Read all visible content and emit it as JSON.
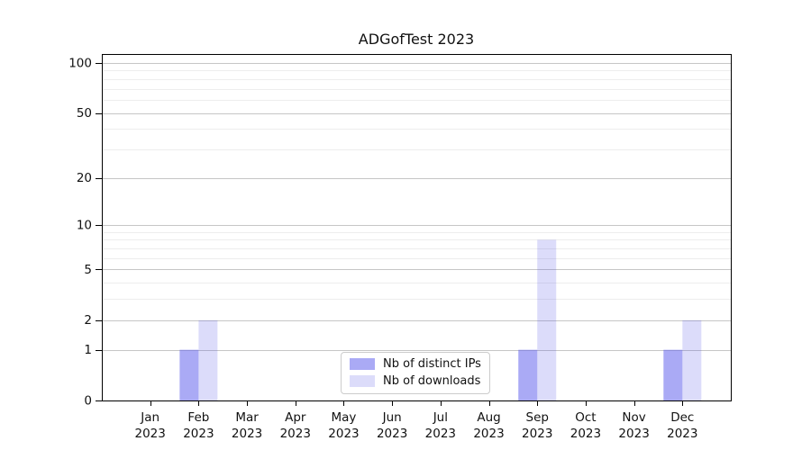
{
  "chart_data": {
    "type": "bar",
    "title": "ADGofTest 2023",
    "year_label": "2023",
    "categories": [
      "Jan",
      "Feb",
      "Mar",
      "Apr",
      "May",
      "Jun",
      "Jul",
      "Aug",
      "Sep",
      "Oct",
      "Nov",
      "Dec"
    ],
    "series": [
      {
        "name": "Nb of distinct IPs",
        "color": "rgba(85,85,235,0.5)",
        "values": [
          0,
          1,
          0,
          0,
          0,
          0,
          0,
          0,
          1,
          0,
          0,
          1
        ]
      },
      {
        "name": "Nb of downloads",
        "color": "rgba(80,80,230,0.2)",
        "values": [
          0,
          2,
          0,
          0,
          0,
          0,
          0,
          0,
          8,
          0,
          0,
          2
        ]
      }
    ],
    "yticks": [
      0,
      1,
      2,
      5,
      10,
      20,
      50,
      100
    ],
    "minor_yticks": [
      3,
      4,
      6,
      7,
      8,
      9,
      30,
      40,
      60,
      70,
      80,
      90
    ],
    "scale": "log1p",
    "ylim": [
      0,
      113
    ],
    "grid": true,
    "legend_position": "bottom-center",
    "colors": {
      "major_grid": "#c6c6c6",
      "minor_grid": "#ededed",
      "spine": "#000000",
      "text": "#111111",
      "background": "#ffffff"
    }
  }
}
